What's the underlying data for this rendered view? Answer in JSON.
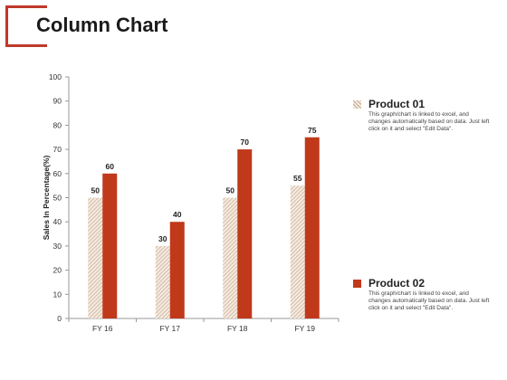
{
  "page": {
    "title": "Column Chart"
  },
  "legend": [
    {
      "name": "Product 01",
      "description": "This graph/chart is linked to excel, and changes automatically based on data. Just left click on it and select \"Edit Data\"."
    },
    {
      "name": "Product 02",
      "description": "This graph/chart is linked to excel, and changes automatically based on data. Just left click on it and select \"Edit Data\"."
    }
  ],
  "chart_data": {
    "type": "bar",
    "title": "Column Chart",
    "xlabel": "",
    "ylabel": "Sales In Percentage(%)",
    "ylim": [
      0,
      100
    ],
    "yticks": [
      0,
      10,
      20,
      30,
      40,
      50,
      60,
      70,
      80,
      90,
      100
    ],
    "categories": [
      "FY 16",
      "FY 17",
      "FY 18",
      "FY 19"
    ],
    "series": [
      {
        "name": "Product 01",
        "values": [
          50,
          30,
          50,
          55
        ],
        "color": "#c8a88a",
        "pattern": "hatch"
      },
      {
        "name": "Product 02",
        "values": [
          60,
          40,
          70,
          75
        ],
        "color": "#c0391b",
        "pattern": "solid"
      }
    ],
    "grid": false,
    "legend_position": "right",
    "data_labels": true
  }
}
